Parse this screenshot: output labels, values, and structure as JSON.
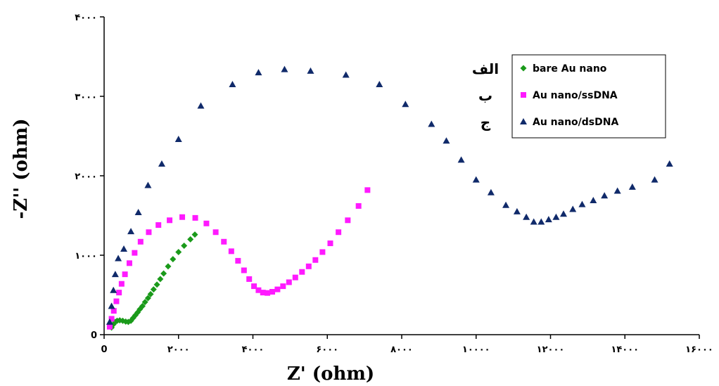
{
  "chart_data": {
    "type": "scatter",
    "title": "",
    "xlabel": "Z' (ohm)",
    "ylabel": "-Z'' (ohm)",
    "xlim": [
      0,
      16000
    ],
    "ylim": [
      0,
      4000
    ],
    "x_ticks": [
      {
        "value": 0,
        "label": "0"
      },
      {
        "value": 2000,
        "label": "۲۰۰۰"
      },
      {
        "value": 4000,
        "label": "۴۰۰۰"
      },
      {
        "value": 6000,
        "label": "۶۰۰۰"
      },
      {
        "value": 8000,
        "label": "۸۰۰۰"
      },
      {
        "value": 10000,
        "label": "۱۰۰۰۰"
      },
      {
        "value": 12000,
        "label": "۱۲۰۰۰"
      },
      {
        "value": 14000,
        "label": "۱۴۰۰۰"
      },
      {
        "value": 16000,
        "label": "۱۶۰۰۰"
      }
    ],
    "y_ticks": [
      {
        "value": 0,
        "label": "0"
      },
      {
        "value": 1000,
        "label": "۱۰۰۰"
      },
      {
        "value": 2000,
        "label": "۲۰۰۰"
      },
      {
        "value": 3000,
        "label": "۳۰۰۰"
      },
      {
        "value": 4000,
        "label": "۴۰۰۰"
      }
    ],
    "grid": false,
    "legend_placement": "top-right",
    "side_labels": [
      "الف",
      "ب",
      "ج"
    ],
    "series": [
      {
        "name": "bare Au nano",
        "marker": "diamond",
        "color": "#1a9a1a",
        "points": [
          [
            200,
            90
          ],
          [
            250,
            130
          ],
          [
            300,
            160
          ],
          [
            350,
            175
          ],
          [
            420,
            180
          ],
          [
            500,
            175
          ],
          [
            580,
            165
          ],
          [
            650,
            160
          ],
          [
            720,
            175
          ],
          [
            780,
            210
          ],
          [
            840,
            245
          ],
          [
            900,
            280
          ],
          [
            960,
            320
          ],
          [
            1030,
            360
          ],
          [
            1100,
            410
          ],
          [
            1180,
            460
          ],
          [
            1250,
            510
          ],
          [
            1330,
            570
          ],
          [
            1420,
            630
          ],
          [
            1510,
            700
          ],
          [
            1600,
            770
          ],
          [
            1720,
            860
          ],
          [
            1850,
            950
          ],
          [
            2000,
            1040
          ],
          [
            2150,
            1120
          ],
          [
            2320,
            1200
          ],
          [
            2440,
            1260
          ]
        ]
      },
      {
        "name": "Au nano/ssDNA",
        "marker": "square",
        "color": "#ff1aff",
        "points": [
          [
            150,
            100
          ],
          [
            200,
            200
          ],
          [
            260,
            300
          ],
          [
            330,
            420
          ],
          [
            400,
            530
          ],
          [
            470,
            640
          ],
          [
            560,
            760
          ],
          [
            680,
            900
          ],
          [
            820,
            1030
          ],
          [
            980,
            1170
          ],
          [
            1200,
            1290
          ],
          [
            1460,
            1380
          ],
          [
            1760,
            1440
          ],
          [
            2100,
            1480
          ],
          [
            2450,
            1470
          ],
          [
            2750,
            1400
          ],
          [
            3000,
            1290
          ],
          [
            3220,
            1170
          ],
          [
            3420,
            1050
          ],
          [
            3600,
            930
          ],
          [
            3760,
            810
          ],
          [
            3900,
            700
          ],
          [
            4030,
            610
          ],
          [
            4150,
            560
          ],
          [
            4270,
            530
          ],
          [
            4390,
            525
          ],
          [
            4520,
            540
          ],
          [
            4660,
            570
          ],
          [
            4810,
            610
          ],
          [
            4970,
            660
          ],
          [
            5140,
            720
          ],
          [
            5320,
            790
          ],
          [
            5500,
            860
          ],
          [
            5680,
            940
          ],
          [
            5870,
            1040
          ],
          [
            6080,
            1150
          ],
          [
            6300,
            1290
          ],
          [
            6550,
            1440
          ],
          [
            6840,
            1620
          ],
          [
            7080,
            1820
          ]
        ]
      },
      {
        "name": "Au nano/dsDNA",
        "marker": "triangle",
        "color": "#102a6a",
        "points": [
          [
            150,
            160
          ],
          [
            200,
            360
          ],
          [
            250,
            560
          ],
          [
            300,
            760
          ],
          [
            380,
            960
          ],
          [
            530,
            1080
          ],
          [
            720,
            1300
          ],
          [
            920,
            1540
          ],
          [
            1180,
            1880
          ],
          [
            1550,
            2150
          ],
          [
            2000,
            2460
          ],
          [
            2600,
            2880
          ],
          [
            3450,
            3150
          ],
          [
            4150,
            3300
          ],
          [
            4850,
            3340
          ],
          [
            5550,
            3320
          ],
          [
            6500,
            3270
          ],
          [
            7400,
            3150
          ],
          [
            8100,
            2900
          ],
          [
            8800,
            2650
          ],
          [
            9200,
            2440
          ],
          [
            9600,
            2200
          ],
          [
            10000,
            1950
          ],
          [
            10400,
            1790
          ],
          [
            10800,
            1630
          ],
          [
            11100,
            1550
          ],
          [
            11350,
            1480
          ],
          [
            11550,
            1420
          ],
          [
            11750,
            1420
          ],
          [
            11950,
            1450
          ],
          [
            12150,
            1480
          ],
          [
            12350,
            1520
          ],
          [
            12600,
            1580
          ],
          [
            12850,
            1640
          ],
          [
            13150,
            1690
          ],
          [
            13450,
            1750
          ],
          [
            13800,
            1810
          ],
          [
            14200,
            1860
          ],
          [
            14800,
            1950
          ],
          [
            15200,
            2150
          ]
        ]
      }
    ]
  }
}
